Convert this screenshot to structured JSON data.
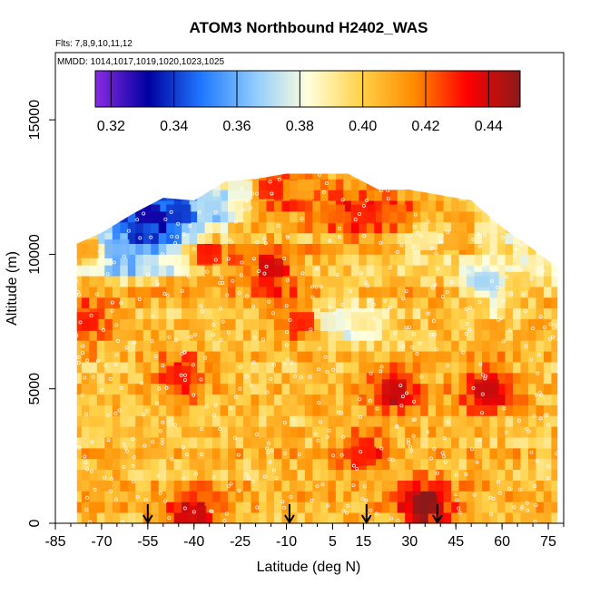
{
  "chart_data": {
    "type": "heatmap",
    "title": "ATOM3 Northbound H2402_WAS",
    "flights_label": "Flts: 7,8,9,10,11,12",
    "dates_label": "MMDD: 1014,1017,1019,1020,1023,1025",
    "xlabel": "Latitude (deg N)",
    "ylabel": "Altitude (m)",
    "xlim": [
      -85,
      80
    ],
    "ylim": [
      0,
      17500
    ],
    "x_ticks": [
      -85,
      -70,
      -55,
      -40,
      -25,
      -10,
      5,
      15,
      30,
      45,
      60,
      75
    ],
    "x_tick_labels": [
      "-85",
      "-70",
      "-55",
      "-40",
      "-25",
      "-10",
      "5",
      "15",
      "30",
      "45",
      "60",
      "75"
    ],
    "y_ticks": [
      0,
      5000,
      10000,
      15000
    ],
    "y_tick_labels": [
      "0",
      "5000",
      "10000",
      "15000"
    ],
    "colorbar": {
      "min": 0.315,
      "max": 0.45,
      "ticks": [
        0.32,
        0.34,
        0.36,
        0.38,
        0.4,
        0.42,
        0.44
      ],
      "tick_labels": [
        "0.32",
        "0.34",
        "0.36",
        "0.38",
        "0.40",
        "0.42",
        "0.44"
      ],
      "stops": [
        "#8a2be2",
        "#0000a0",
        "#1f78ff",
        "#8ecbff",
        "#ffffdc",
        "#ffd24a",
        "#ff8c00",
        "#ff0000",
        "#8b1a1a"
      ]
    },
    "profile_markers_lat": [
      -55,
      -9,
      16,
      39
    ],
    "envelope": {
      "lat": [
        -85,
        -78,
        -70,
        -60,
        -50,
        -40,
        -30,
        -20,
        -10,
        0,
        10,
        20,
        30,
        40,
        50,
        60,
        70,
        78
      ],
      "alt_top": [
        0,
        10400,
        10800,
        11500,
        12100,
        12000,
        12700,
        12800,
        13000,
        13000,
        13000,
        12400,
        12400,
        12200,
        12000,
        11000,
        10200,
        9500
      ],
      "lat_edge": [
        -78,
        78
      ]
    },
    "cells": [
      {
        "lat": -75,
        "alt": 10200,
        "v": 0.41
      },
      {
        "lat": -65,
        "alt": 10200,
        "v": 0.36
      },
      {
        "lat": -55,
        "alt": 11500,
        "v": 0.33
      },
      {
        "lat": -45,
        "alt": 11500,
        "v": 0.34
      },
      {
        "lat": -35,
        "alt": 11800,
        "v": 0.37
      },
      {
        "lat": -25,
        "alt": 12400,
        "v": 0.38
      },
      {
        "lat": -15,
        "alt": 12400,
        "v": 0.43
      },
      {
        "lat": -5,
        "alt": 12400,
        "v": 0.41
      },
      {
        "lat": 5,
        "alt": 11500,
        "v": 0.42
      },
      {
        "lat": 15,
        "alt": 11500,
        "v": 0.43
      },
      {
        "lat": 25,
        "alt": 11500,
        "v": 0.42
      },
      {
        "lat": 35,
        "alt": 10500,
        "v": 0.39
      },
      {
        "lat": 45,
        "alt": 10500,
        "v": 0.41
      },
      {
        "lat": 55,
        "alt": 9000,
        "v": 0.37
      },
      {
        "lat": 65,
        "alt": 9000,
        "v": 0.4
      },
      {
        "lat": -35,
        "alt": 10000,
        "v": 0.43
      },
      {
        "lat": -15,
        "alt": 9500,
        "v": 0.44
      },
      {
        "lat": -5,
        "alt": 7500,
        "v": 0.43
      },
      {
        "lat": 5,
        "alt": 7500,
        "v": 0.38
      },
      {
        "lat": 15,
        "alt": 7500,
        "v": 0.39
      },
      {
        "lat": -75,
        "alt": 7500,
        "v": 0.43
      },
      {
        "lat": -45,
        "alt": 5500,
        "v": 0.43
      },
      {
        "lat": 25,
        "alt": 5000,
        "v": 0.44
      },
      {
        "lat": 55,
        "alt": 5000,
        "v": 0.44
      },
      {
        "lat": -40,
        "alt": 300,
        "v": 0.44
      },
      {
        "lat": 35,
        "alt": 700,
        "v": 0.45
      },
      {
        "lat": 15,
        "alt": 2500,
        "v": 0.43
      }
    ]
  }
}
